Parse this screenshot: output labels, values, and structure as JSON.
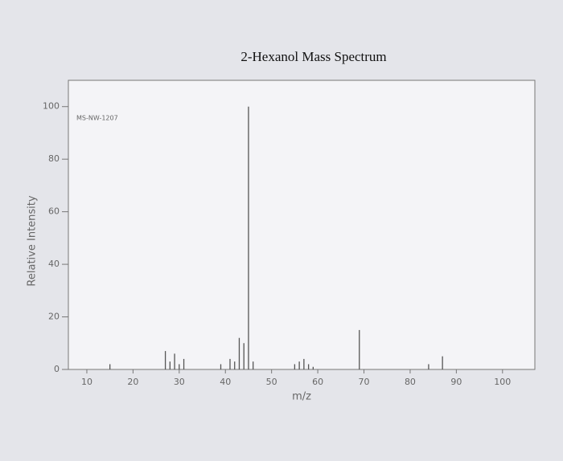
{
  "chart_data": {
    "type": "stick",
    "title": "2-Hexanol Mass Spectrum",
    "annotation": "MS-NW-1207",
    "x_label": "m/z",
    "y_label": "Relative Intensity",
    "x": [
      15,
      27,
      28,
      29,
      30,
      31,
      39,
      41,
      42,
      43,
      44,
      45,
      46,
      55,
      56,
      57,
      58,
      59,
      69,
      84,
      87
    ],
    "values": [
      2,
      7,
      3,
      6,
      2,
      4,
      2,
      4,
      3,
      12,
      10,
      100,
      3,
      2,
      3,
      4,
      2,
      1,
      15,
      2,
      5
    ],
    "color": "#555555",
    "xlim": [
      6,
      107
    ],
    "xticks": [
      10,
      20,
      30,
      40,
      50,
      60,
      70,
      80,
      90,
      100
    ],
    "ylim": [
      0,
      110
    ],
    "yticks": [
      0,
      20,
      40,
      60,
      80,
      100
    ]
  }
}
